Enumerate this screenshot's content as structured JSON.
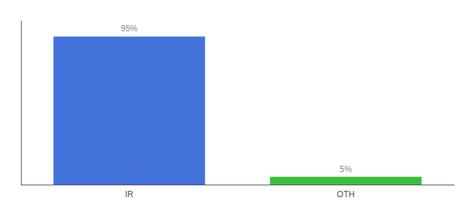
{
  "chart_data": {
    "type": "bar",
    "categories": [
      "IR",
      "OTH"
    ],
    "values": [
      95,
      5
    ],
    "value_labels": [
      "95%",
      "5%"
    ],
    "colors": [
      "#4472db",
      "#3abf3a"
    ],
    "ylim": [
      0,
      105
    ],
    "tick_labels": "x",
    "grid": false,
    "data_labels": true
  }
}
